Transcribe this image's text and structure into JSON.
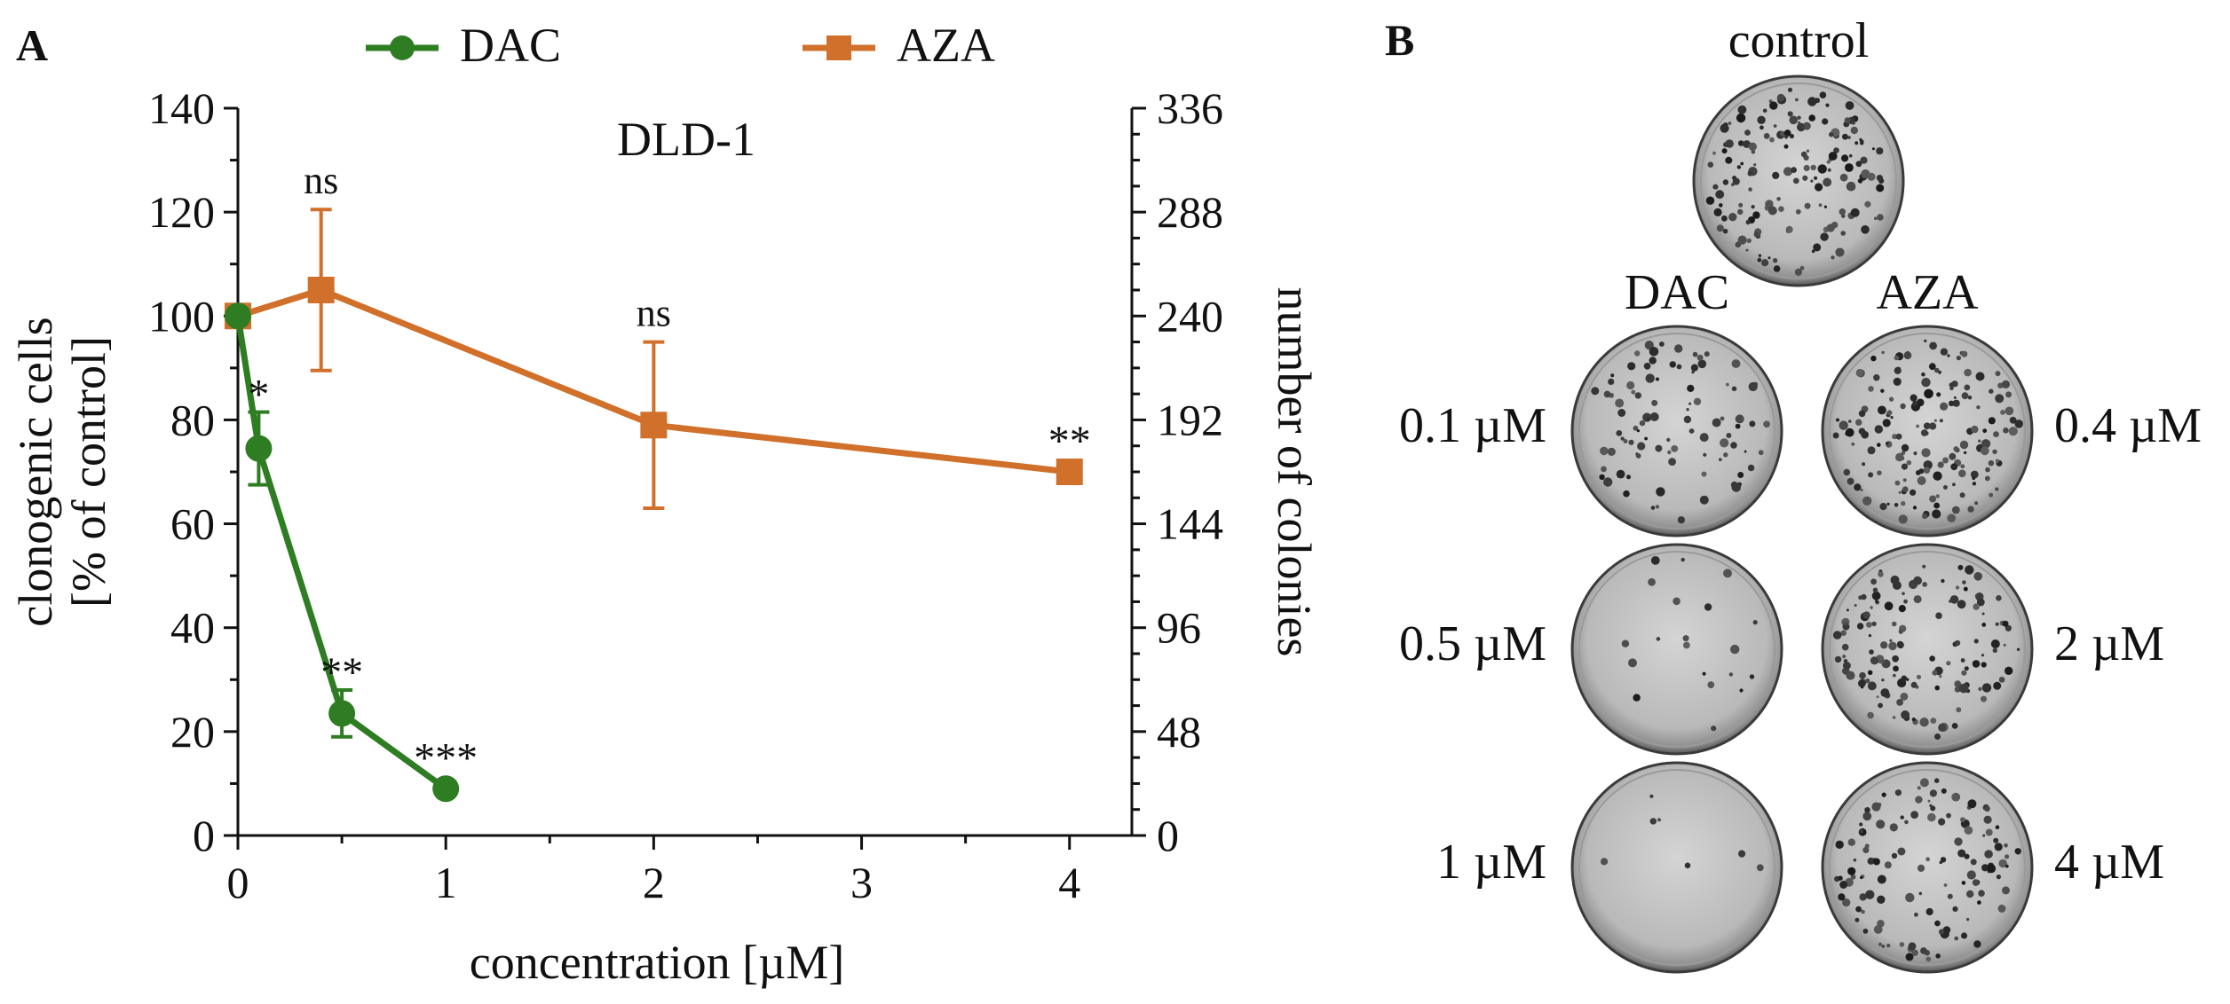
{
  "panel_a": {
    "label": "A",
    "chart_data": {
      "type": "line",
      "title": "DLD-1",
      "xlabel": "concentration [µM]",
      "ylabel_lines": [
        "clonogenic cells",
        "[% of control]"
      ],
      "y2label": "number of colonies",
      "xlim": [
        0,
        4.3
      ],
      "ylim": [
        0,
        140
      ],
      "y2lim": [
        0,
        336
      ],
      "xticks": [
        0,
        1,
        2,
        3,
        4
      ],
      "xtick_labels": [
        "0",
        "1",
        "2",
        "3",
        "4"
      ],
      "yticks": [
        0,
        20,
        40,
        60,
        80,
        100,
        120,
        140
      ],
      "ytick_labels": [
        "0",
        "20",
        "40",
        "60",
        "80",
        "100",
        "120",
        "140"
      ],
      "y2ticks": [
        0,
        48,
        96,
        144,
        192,
        240,
        288,
        336
      ],
      "y2tick_labels": [
        "0",
        "48",
        "96",
        "144",
        "192",
        "240",
        "288",
        "336"
      ],
      "grid": false,
      "legend_position": "top",
      "series": [
        {
          "name": "DAC",
          "color": "#2e7d22",
          "marker": "circle",
          "x": [
            0,
            0.1,
            0.5,
            1
          ],
          "y": [
            100,
            74.5,
            23.5,
            9
          ],
          "err": [
            0,
            7,
            4.5,
            0
          ],
          "annotations": [
            "",
            "*",
            "**",
            "***"
          ]
        },
        {
          "name": "AZA",
          "color": "#d0702a",
          "marker": "square",
          "x": [
            0,
            0.4,
            2,
            4
          ],
          "y": [
            100,
            105,
            79,
            70
          ],
          "err": [
            0,
            15.5,
            16,
            0
          ],
          "annotations": [
            "",
            "ns",
            "ns",
            "**"
          ]
        }
      ]
    }
  },
  "panel_b": {
    "label": "B",
    "control_label": "control",
    "dac_header": "DAC",
    "aza_header": "AZA",
    "dac_concentrations": [
      "0.1 µM",
      "0.5 µM",
      "1 µM"
    ],
    "aza_concentrations": [
      "0.4 µM",
      "2 µM",
      "4 µM"
    ],
    "colony_density": {
      "control": 1.0,
      "dac": [
        0.55,
        0.12,
        0.04
      ],
      "aza": [
        1.0,
        0.85,
        0.75
      ]
    }
  }
}
